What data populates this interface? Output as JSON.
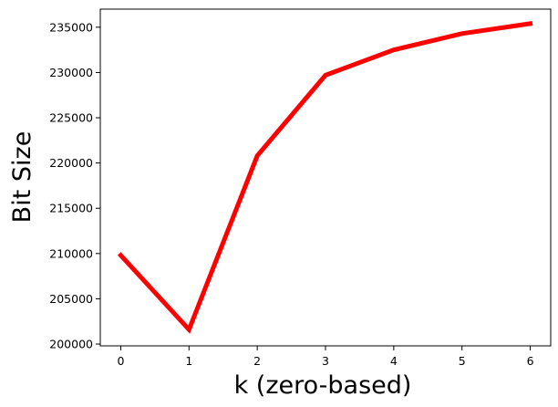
{
  "chart_data": {
    "type": "line",
    "title": "",
    "xlabel": "k (zero-based)",
    "ylabel": "Bit Size",
    "x": [
      0,
      1,
      2,
      3,
      4,
      5,
      6
    ],
    "xticks": [
      "0",
      "1",
      "2",
      "3",
      "4",
      "5",
      "6"
    ],
    "yticks": [
      "200000",
      "205000",
      "210000",
      "215000",
      "220000",
      "225000",
      "230000",
      "235000"
    ],
    "xlim": [
      -0.3,
      6.3
    ],
    "ylim": [
      199800,
      237000
    ],
    "grid": false,
    "series": [
      {
        "color": "#ff0000",
        "values": [
          209800,
          201600,
          220800,
          229700,
          232500,
          234300,
          235400
        ]
      }
    ]
  }
}
